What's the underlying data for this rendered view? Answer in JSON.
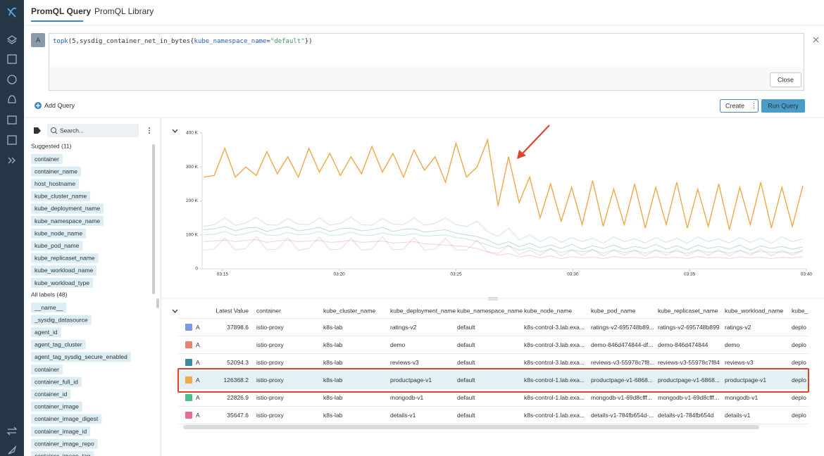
{
  "tabs": [
    "PromQL Query",
    "PromQL Library"
  ],
  "query": {
    "label": "A",
    "parts": [
      {
        "text": "topk",
        "color": "#2a5db0"
      },
      {
        "text": "(5,sysdig_container_net_in_bytes{",
        "color": "#333333"
      },
      {
        "text": "kube_namespace_name",
        "color": "#2a5db0"
      },
      {
        "text": "=",
        "color": "#333333"
      },
      {
        "text": "\"default\"",
        "color": "#3a9b5c"
      },
      {
        "text": "})",
        "color": "#333333"
      }
    ]
  },
  "buttons": {
    "close": "Close",
    "add_query": "Add Query",
    "create": "Create",
    "run": "Run Query"
  },
  "search_placeholder": "Search...",
  "suggested_title": "Suggested (11)",
  "suggested": [
    "container",
    "container_name",
    "host_hostname",
    "kube_cluster_name",
    "kube_deployment_name",
    "kube_namespace_name",
    "kube_node_name",
    "kube_pod_name",
    "kube_replicaset_name",
    "kube_workload_name",
    "kube_workload_type"
  ],
  "all_labels_title": "All labels (48)",
  "all_labels": [
    "__name__",
    "_sysdig_datasource",
    "agent_id",
    "agent_tag_cluster",
    "agent_tag_sysdig_secure_enabled",
    "container",
    "container_full_id",
    "container_id",
    "container_image",
    "container_image_digest",
    "container_image_id",
    "container_image_repo",
    "container_image_tag"
  ],
  "chart_data": {
    "type": "line",
    "x": [
      14.2,
      14.65,
      15.1,
      15.55,
      16,
      16.45,
      16.9,
      17.35,
      17.8,
      18.25,
      18.7,
      19.15,
      19.6,
      20.05,
      20.5,
      20.95,
      21.4,
      21.85,
      22.3,
      22.75,
      23.2,
      23.65,
      24.1,
      24.55,
      25,
      25.45,
      25.9,
      26.35,
      26.8,
      27.25,
      27.7,
      28.15,
      28.6,
      29.05,
      29.5,
      29.95,
      30.4,
      30.85,
      31.3,
      31.75,
      32.2,
      32.65,
      33.1,
      33.55,
      34,
      34.45,
      34.9,
      35.35,
      35.8,
      36.25,
      36.7,
      37.15,
      37.6,
      38.05,
      38.5,
      38.95,
      39.4,
      39.85
    ],
    "xlim": [
      14.13,
      40
    ],
    "xticks": [
      {
        "value": 15,
        "label": "03:15"
      },
      {
        "value": 20,
        "label": "03:20"
      },
      {
        "value": 25,
        "label": "03:25"
      },
      {
        "value": 30,
        "label": "03:30"
      },
      {
        "value": 35,
        "label": "03:35"
      },
      {
        "value": 40,
        "label": "03:40"
      }
    ],
    "ylim": [
      0,
      400
    ],
    "yticks": [
      0,
      {
        "value": 100,
        "label": "100 K"
      },
      {
        "value": 200,
        "label": "200 K"
      },
      {
        "value": 300,
        "label": "300 K"
      },
      {
        "value": 400,
        "label": "400 K"
      }
    ],
    "series": [
      {
        "color": "#7b9ae6",
        "values": [
          125,
          130,
          150,
          128,
          135,
          152,
          130,
          128,
          148,
          132,
          130,
          150,
          128,
          134,
          152,
          130,
          128,
          148,
          132,
          130,
          150,
          128,
          134,
          150,
          130,
          125,
          140,
          110,
          95,
          120,
          85,
          100,
          80,
          95,
          78,
          92,
          80,
          90,
          75,
          95,
          80,
          88,
          76,
          92,
          78,
          90,
          75,
          94,
          80,
          88,
          76,
          92,
          78,
          90,
          75,
          94,
          80,
          88
        ]
      },
      {
        "color": "#e8836e",
        "values": [
          55,
          58,
          90,
          55,
          60,
          95,
          56,
          58,
          92,
          55,
          60,
          94,
          56,
          58,
          90,
          55,
          58,
          95,
          56,
          58,
          92,
          55,
          58,
          90,
          56,
          55,
          85,
          50,
          45,
          70,
          42,
          55,
          40,
          60,
          38,
          55,
          40,
          58,
          38,
          55,
          40,
          56,
          38,
          55,
          40,
          58,
          38,
          55,
          40,
          56,
          38,
          55,
          40,
          58,
          38,
          55,
          40,
          56
        ]
      },
      {
        "color": "#3a8a9e",
        "values": [
          115,
          118,
          125,
          112,
          120,
          122,
          110,
          118,
          124,
          112,
          116,
          122,
          110,
          118,
          120,
          112,
          115,
          122,
          110,
          116,
          118,
          108,
          112,
          115,
          105,
          100,
          95,
          85,
          70,
          80,
          65,
          75,
          62,
          70,
          60,
          72,
          58,
          68,
          60,
          70,
          58,
          66,
          60,
          72,
          58,
          68,
          56,
          70,
          60,
          66,
          58,
          70,
          55,
          68,
          60,
          66,
          58,
          64
        ]
      },
      {
        "color": "#f0a848",
        "values": [
          270,
          275,
          355,
          270,
          300,
          275,
          345,
          280,
          330,
          270,
          355,
          285,
          340,
          275,
          330,
          280,
          360,
          285,
          340,
          270,
          350,
          290,
          330,
          255,
          370,
          270,
          300,
          380,
          185,
          330,
          195,
          270,
          150,
          250,
          140,
          240,
          130,
          260,
          125,
          235,
          130,
          250,
          120,
          240,
          130,
          255,
          120,
          235,
          125,
          250,
          115,
          240,
          130,
          255,
          120,
          240,
          125,
          245
        ]
      },
      {
        "color": "#4dbd8a",
        "values": [
          100,
          102,
          110,
          98,
          104,
          112,
          100,
          98,
          108,
          100,
          102,
          110,
          98,
          100,
          108,
          100,
          98,
          106,
          100,
          98,
          104,
          96,
          98,
          100,
          92,
          88,
          80,
          70,
          60,
          68,
          55,
          62,
          50,
          58,
          48,
          56,
          50,
          55,
          46,
          56,
          48,
          54,
          46,
          55,
          48,
          52,
          45,
          56,
          48,
          52,
          46,
          54,
          45,
          52,
          48,
          50,
          46,
          52
        ]
      },
      {
        "color": "#e66a9a",
        "values": [
          80,
          82,
          85,
          80,
          84,
          86,
          78,
          82,
          85,
          80,
          82,
          84,
          78,
          80,
          84,
          78,
          80,
          82,
          76,
          78,
          80,
          74,
          72,
          70,
          68,
          65,
          60,
          50,
          40,
          45,
          35,
          40,
          32,
          38,
          30,
          36,
          32,
          35,
          30,
          36,
          32,
          34,
          30,
          35,
          32,
          34,
          30,
          36,
          32,
          34,
          30,
          35,
          32,
          34,
          30,
          34,
          32,
          35
        ]
      }
    ]
  },
  "table": {
    "headers": [
      "Latest Value",
      "container",
      "kube_cluster_name",
      "kube_deployment_name",
      "kube_namespace_name",
      "kube_node_name",
      "kube_pod_name",
      "kube_replicaset_name",
      "kube_workload_name",
      "kube_"
    ],
    "selected_row": 3,
    "rows": [
      {
        "query": "A",
        "cells": [
          "37898.6",
          "istio-proxy",
          "k8s-lab",
          "ratings-v2",
          "default",
          "k8s-control-3.lab.exa...",
          "ratings-v2-695748b89...",
          "ratings-v2-695748b899",
          "ratings-v2",
          "deplo"
        ]
      },
      {
        "query": "A",
        "cells": [
          null,
          "istio-proxy",
          "k8s-lab",
          "demo",
          "default",
          "k8s-control-3.lab.exa...",
          "demo-846d474844-df...",
          "demo-846d474844",
          "demo",
          "deplo"
        ]
      },
      {
        "query": "A",
        "cells": [
          "52094.3",
          "istio-proxy",
          "k8s-lab",
          "reviews-v3",
          "default",
          "k8s-control-3.lab.exa...",
          "reviews-v3-55978c7f8...",
          "reviews-v3-55978c7f84",
          "reviews-v3",
          "deplo"
        ]
      },
      {
        "query": "A",
        "cells": [
          "126368.2",
          "istio-proxy",
          "k8s-lab",
          "productpage-v1",
          "default",
          "k8s-control-1.lab.exa...",
          "productpage-v1-6868...",
          "productpage-v1-6868...",
          "productpage-v1",
          "deplo"
        ]
      },
      {
        "query": "A",
        "cells": [
          "22826.9",
          "istio-proxy",
          "k8s-lab",
          "mongodb-v1",
          "default",
          "k8s-control-1.lab.exa...",
          "mongodb-v1-69d8cfff...",
          "mongodb-v1-69d8cfff...",
          "mongodb-v1",
          "deplo"
        ]
      },
      {
        "query": "A",
        "cells": [
          "35647.6",
          "istio-proxy",
          "k8s-lab",
          "details-v1",
          "default",
          "k8s-control-1.lab.exa...",
          "details-v1-784fb654d-...",
          "details-v1-784fb654d",
          "details-v1",
          "deplo"
        ]
      }
    ]
  }
}
